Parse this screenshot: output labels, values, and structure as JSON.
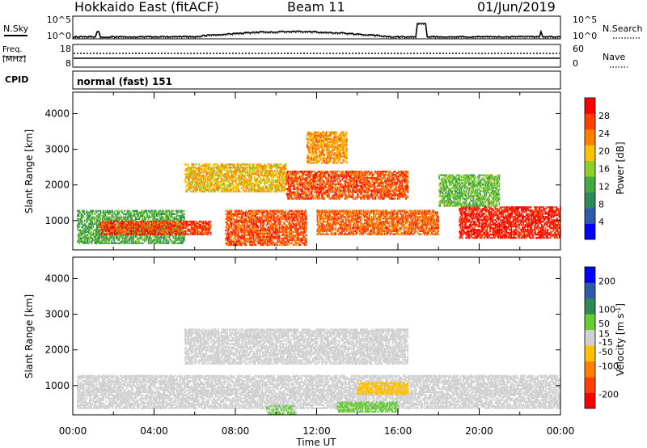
{
  "header": {
    "title": "Hokkaido East (fitACF)",
    "beam": "Beam 11",
    "date": "01/Jun/2019"
  },
  "top_panels": {
    "nsky": {
      "label": "N.Sky",
      "left_ticks": [
        "10^5",
        "10^0"
      ],
      "right_ticks": [
        "10^5",
        "10^0"
      ],
      "right_label": "N.Search"
    },
    "freq": {
      "label_line1": "Freq.",
      "label_line2": "[MHz]",
      "left_ticks": [
        "18",
        "8"
      ],
      "right_ticks": [
        "60",
        "0"
      ],
      "right_label": "Nave"
    },
    "cpid": {
      "label": "CPID",
      "text": "normal (fast) 151"
    }
  },
  "chart_data": [
    {
      "type": "heatmap",
      "title": "",
      "xlabel": "",
      "ylabel": "Slant Range [km]",
      "xlim": [
        "00:00",
        "24:00"
      ],
      "ylim": [
        180,
        4600
      ],
      "yticks": [
        1000,
        2000,
        3000,
        4000
      ],
      "colorbar": {
        "label": "Power [dB]",
        "ticks": [
          4,
          8,
          12,
          16,
          20,
          24,
          28
        ],
        "range": [
          0,
          32
        ],
        "colors": [
          "#0000ff",
          "#2e5ca8",
          "#2e8b57",
          "#44aa44",
          "#8bd12a",
          "#ffc000",
          "#ff8000",
          "#ff4000",
          "#ff0000"
        ]
      },
      "echo_regions": [
        {
          "t_start": 0.2,
          "t_end": 5.5,
          "range_start": 350,
          "range_end": 1300,
          "value": 12
        },
        {
          "t_start": 1.3,
          "t_end": 6.8,
          "range_start": 600,
          "range_end": 1000,
          "value": 27
        },
        {
          "t_start": 5.5,
          "t_end": 10.5,
          "range_start": 1800,
          "range_end": 2600,
          "value": 20
        },
        {
          "t_start": 7.5,
          "t_end": 11.5,
          "range_start": 300,
          "range_end": 1300,
          "value": 26
        },
        {
          "t_start": 10.5,
          "t_end": 16.5,
          "range_start": 1600,
          "range_end": 2400,
          "value": 26
        },
        {
          "t_start": 11.5,
          "t_end": 13.5,
          "range_start": 2600,
          "range_end": 3500,
          "value": 22
        },
        {
          "t_start": 12.0,
          "t_end": 18.0,
          "range_start": 600,
          "range_end": 1300,
          "value": 25
        },
        {
          "t_start": 19.0,
          "t_end": 24.0,
          "range_start": 500,
          "range_end": 1400,
          "value": 29
        },
        {
          "t_start": 18.0,
          "t_end": 21.0,
          "range_start": 1400,
          "range_end": 2300,
          "value": 14
        }
      ]
    },
    {
      "type": "heatmap",
      "title": "",
      "xlabel": "Time UT",
      "ylabel": "Slant Range [km]",
      "xlim": [
        "00:00",
        "24:00"
      ],
      "ylim": [
        180,
        4600
      ],
      "xticks": [
        "00:00",
        "04:00",
        "08:00",
        "12:00",
        "16:00",
        "20:00",
        "00:00"
      ],
      "yticks": [
        1000,
        2000,
        3000,
        4000
      ],
      "colorbar": {
        "label": "Velocity [m s^-1]",
        "ticks": [
          -200,
          -100,
          -50,
          -15,
          15,
          50,
          100,
          200
        ],
        "range": [
          -250,
          250
        ],
        "colors": [
          "#ff0000",
          "#ff4000",
          "#ff8000",
          "#ffc000",
          "#d0d0d0",
          "#66cc33",
          "#2e8b57",
          "#2e5ca8",
          "#0000ff"
        ]
      },
      "echo_regions": [
        {
          "t_start": 0.2,
          "t_end": 24.0,
          "range_start": 350,
          "range_end": 1300,
          "value": 0
        },
        {
          "t_start": 5.5,
          "t_end": 16.5,
          "range_start": 1600,
          "range_end": 2600,
          "value": 0
        },
        {
          "t_start": 14.0,
          "t_end": 16.5,
          "range_start": 750,
          "range_end": 1100,
          "value": -60
        },
        {
          "t_start": 13.0,
          "t_end": 16.0,
          "range_start": 250,
          "range_end": 550,
          "value": 40
        },
        {
          "t_start": 9.5,
          "t_end": 11.0,
          "range_start": 200,
          "range_end": 450,
          "value": 30
        }
      ]
    }
  ]
}
